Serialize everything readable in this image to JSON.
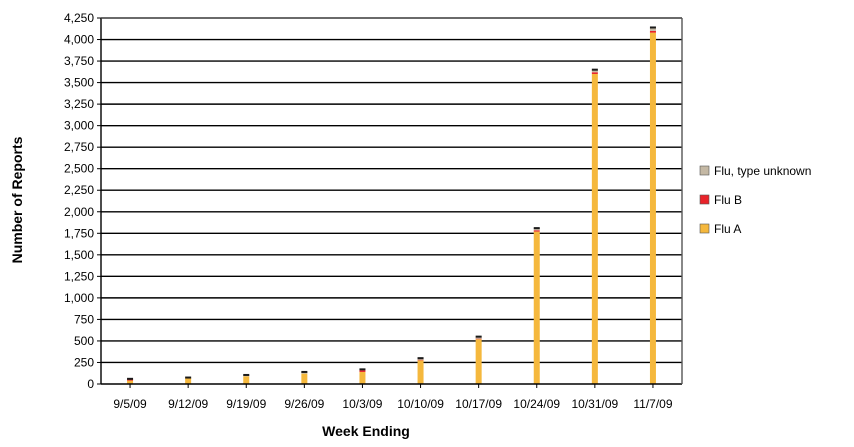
{
  "chart_data": {
    "type": "bar",
    "stacked": true,
    "title": "",
    "xlabel": "Week Ending",
    "ylabel": "Number of Reports",
    "ylim": [
      0,
      4250
    ],
    "y_ticks": [
      0,
      250,
      500,
      750,
      1000,
      1250,
      1500,
      1750,
      2000,
      2250,
      2500,
      2750,
      3000,
      3250,
      3500,
      3750,
      4000,
      4250
    ],
    "y_tick_labels": [
      "0",
      "250",
      "500",
      "750",
      "1,000",
      "1,250",
      "1,500",
      "1,750",
      "2,000",
      "2,250",
      "2,500",
      "2,750",
      "3,000",
      "3,250",
      "3,500",
      "3,750",
      "4,000",
      "4,250"
    ],
    "grid": true,
    "legend_position": "right",
    "categories": [
      "9/5/09",
      "9/12/09",
      "9/19/09",
      "9/26/09",
      "10/3/09",
      "10/10/09",
      "10/17/09",
      "10/24/09",
      "10/31/09",
      "11/7/09"
    ],
    "series": [
      {
        "name": "Flu A",
        "color": "#f5b83d",
        "values": [
          40,
          75,
          90,
          120,
          140,
          275,
          520,
          1770,
          3600,
          4080
        ]
      },
      {
        "name": "Flu B",
        "color": "#e8232a",
        "values": [
          20,
          0,
          0,
          0,
          20,
          5,
          5,
          15,
          20,
          20
        ]
      },
      {
        "name": "Flu, type unknown",
        "color": "#c4b8a4",
        "values": [
          0,
          0,
          15,
          20,
          10,
          20,
          25,
          25,
          30,
          40
        ]
      }
    ],
    "legend_order": [
      "Flu, type unknown",
      "Flu B",
      "Flu A"
    ],
    "top_edge_color": "#1a1a1a"
  }
}
